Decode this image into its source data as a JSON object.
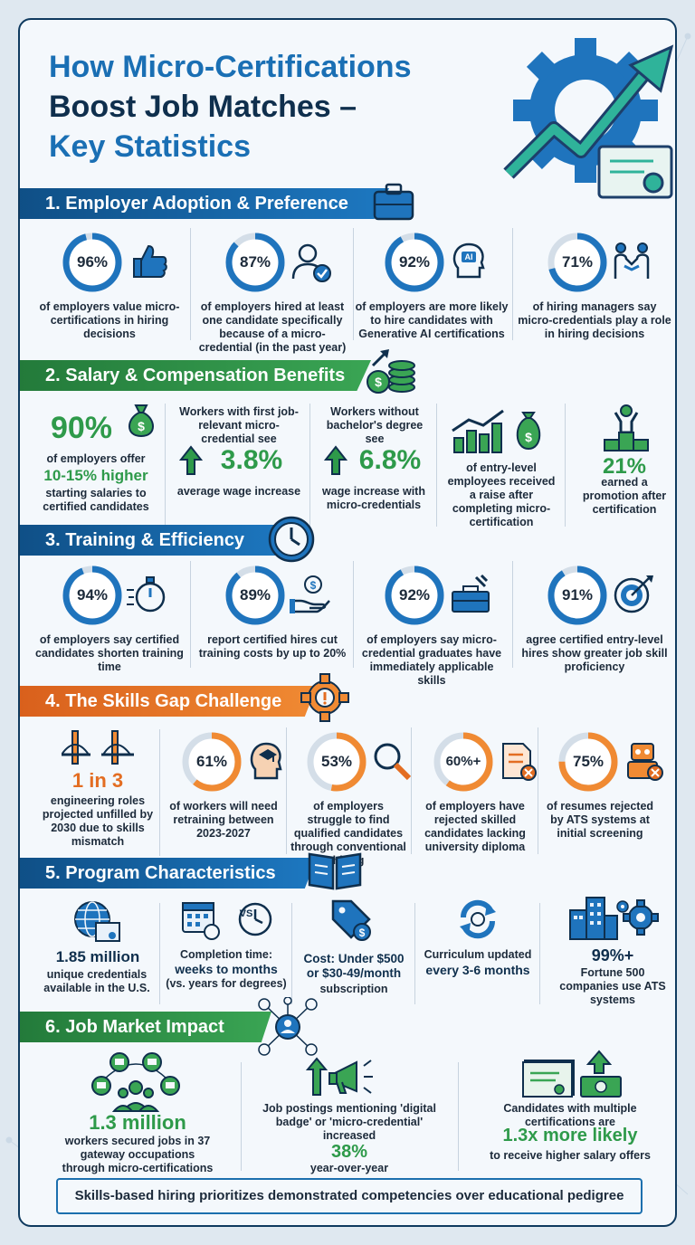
{
  "title": {
    "line1": "How Micro-Certifications",
    "line2": "Boost Job Matches –",
    "line3": "Key Statistics"
  },
  "sections": {
    "s1": {
      "title": "1. Employer Adoption & Preference",
      "items": [
        {
          "value": "96%",
          "pct": 96,
          "desc": "of employers value micro-certifications in hiring decisions",
          "icon": "thumbs-up-icon"
        },
        {
          "value": "87%",
          "pct": 87,
          "desc": "of employers hired at least one candidate specifically because of a micro-credential (in the past year)",
          "icon": "user-check-icon"
        },
        {
          "value": "92%",
          "pct": 92,
          "desc": "of employers are more likely to hire candidates with Generative AI certifications",
          "icon": "ai-head-icon"
        },
        {
          "value": "71%",
          "pct": 71,
          "desc": "of hiring managers say micro-credentials play a role in hiring decisions",
          "icon": "handshake-icon"
        }
      ]
    },
    "s2": {
      "title": "2. Salary & Compensation Benefits",
      "c1": {
        "value": "90%",
        "line1": "of employers offer",
        "line2": "10-15% higher",
        "line3": "starting salaries to certified candidates"
      },
      "c2": {
        "top": "Workers with first job-relevant micro-credential see",
        "value": "3.8%",
        "bottom": "average wage increase"
      },
      "c3": {
        "top": "Workers without bachelor's degree see",
        "value": "6.8%",
        "bottom": "wage increase with micro-credentials"
      },
      "c4": {
        "desc": "of entry-level employees received a raise after completing micro-certification"
      },
      "c5": {
        "value": "21%",
        "desc": "earned a promotion after certification"
      }
    },
    "s3": {
      "title": "3. Training & Efficiency",
      "items": [
        {
          "value": "94%",
          "pct": 94,
          "desc": "of employers say certified candidates shorten training time",
          "icon": "stopwatch-icon"
        },
        {
          "value": "89%",
          "pct": 89,
          "desc": "report certified hires cut training costs by up to 20%",
          "icon": "coin-hand-icon"
        },
        {
          "value": "92%",
          "pct": 92,
          "desc": "of employers say micro-credential graduates have immediately applicable skills",
          "icon": "toolbox-icon"
        },
        {
          "value": "91%",
          "pct": 91,
          "desc": "agree certified entry-level hires show greater job skill proficiency",
          "icon": "target-icon"
        }
      ]
    },
    "s4": {
      "title": "4. The Skills Gap Challenge",
      "c1": {
        "value": "1 in 3",
        "desc": "engineering roles projected unfilled by 2030 due to skills mismatch"
      },
      "items": [
        {
          "value": "61%",
          "pct": 61,
          "desc": "of workers will need retraining between 2023-2027",
          "icon": "learning-head-icon"
        },
        {
          "value": "53%",
          "pct": 53,
          "desc": "of employers struggle to find qualified candidates through conventional hiring",
          "icon": "magnifier-icon"
        },
        {
          "value": "60%+",
          "pct": 60,
          "desc": "of employers have rejected skilled candidates lacking university diploma",
          "icon": "rejected-document-icon"
        },
        {
          "value": "75%",
          "pct": 75,
          "desc": "of resumes rejected by ATS systems at initial screening",
          "icon": "robot-icon"
        }
      ]
    },
    "s5": {
      "title": "5. Program Characteristics",
      "c1": {
        "value": "1.85 million",
        "desc": "unique credentials available in the U.S."
      },
      "c2": {
        "vs": "VS",
        "top": "Completion time:",
        "value": "weeks to months",
        "bottom": "(vs. years for degrees)"
      },
      "c3": {
        "value": "Cost: Under $500 or $30-49/month",
        "bottom": "subscription"
      },
      "c4": {
        "top": "Curriculum updated",
        "value": "every 3-6 months"
      },
      "c5": {
        "value": "99%+",
        "desc": "Fortune 500 companies use ATS systems"
      }
    },
    "s6": {
      "title": "6. Job Market Impact",
      "c1": {
        "value": "1.3 million",
        "desc": "workers secured jobs in 37 gateway occupations through micro-certifications"
      },
      "c2": {
        "top": "Job postings mentioning 'digital badge' or 'micro-credential' increased",
        "value": "38%",
        "bottom": "year-over-year"
      },
      "c3": {
        "top": "Candidates with multiple certifications are",
        "value": "1.3x more likely",
        "bottom": "to receive higher salary offers"
      }
    }
  },
  "footer": "Skills-based hiring prioritizes demonstrated competencies over educational pedigree",
  "colors": {
    "blue": "#1a6fb4",
    "navy": "#0f2f4d",
    "green": "#2e9a4a",
    "orange": "#e36d22"
  }
}
